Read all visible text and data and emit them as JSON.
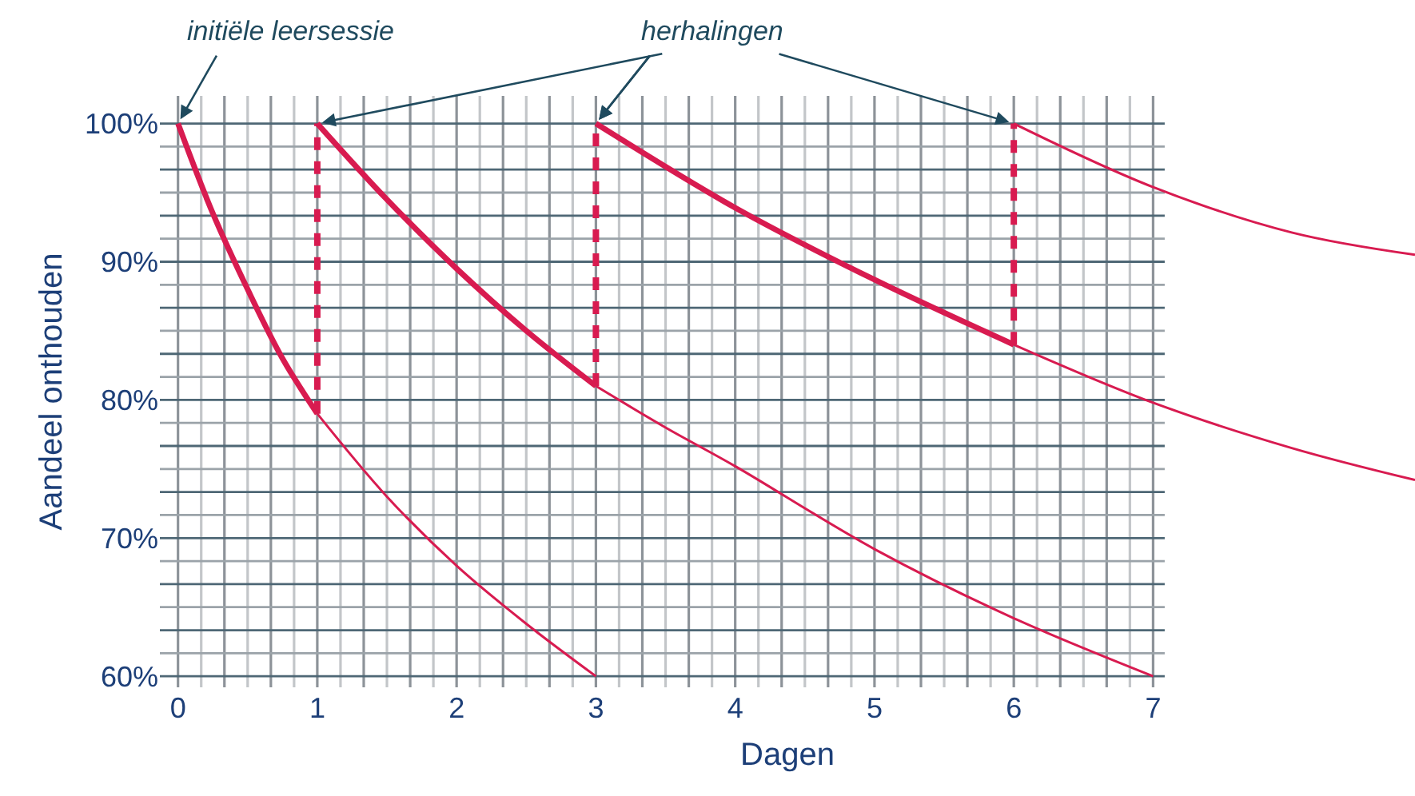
{
  "chart_data": {
    "type": "line",
    "xlabel": "Dagen",
    "ylabel": "Aandeel onthouden",
    "xlim": [
      -0.13,
      8.88
    ],
    "ylim": [
      59.2,
      102
    ],
    "xticks": [
      0,
      1,
      2,
      3,
      4,
      5,
      6,
      7
    ],
    "yticks": [
      {
        "value": 60,
        "label": "60%"
      },
      {
        "value": 70,
        "label": "70%"
      },
      {
        "value": 80,
        "label": "80%"
      },
      {
        "value": 90,
        "label": "90%"
      },
      {
        "value": 100,
        "label": "100%"
      }
    ],
    "grid": true,
    "marker": "none",
    "series": [
      {
        "color": "#d81b50",
        "line_style": "solid",
        "x": [
          0,
          0.25,
          0.5,
          0.75,
          1
        ],
        "values": [
          100,
          93.5,
          88,
          83,
          79
        ]
      },
      {
        "color": "#d81b50",
        "line_style": "solid",
        "x": [
          1,
          1.5,
          2,
          2.5,
          3
        ],
        "values": [
          79,
          73,
          68,
          63.8,
          60
        ]
      },
      {
        "color": "#d81b50",
        "line_style": "dashed",
        "x": [
          1,
          1
        ],
        "values": [
          79,
          100
        ]
      },
      {
        "color": "#d81b50",
        "line_style": "solid",
        "x": [
          1,
          1.5,
          2,
          2.5,
          3
        ],
        "values": [
          100,
          94.5,
          89.5,
          85,
          81
        ]
      },
      {
        "color": "#d81b50",
        "line_style": "solid",
        "x": [
          3,
          3.5,
          4,
          5,
          6,
          7
        ],
        "values": [
          81,
          78,
          75.2,
          69.2,
          64.2,
          60
        ]
      },
      {
        "color": "#d81b50",
        "line_style": "dashed",
        "x": [
          3,
          3
        ],
        "values": [
          81,
          100
        ]
      },
      {
        "color": "#d81b50",
        "line_style": "solid",
        "x": [
          3,
          4,
          5,
          6
        ],
        "values": [
          100,
          93.9,
          88.7,
          84
        ]
      },
      {
        "color": "#d81b50",
        "line_style": "solid",
        "x": [
          6,
          7,
          8,
          8.88
        ],
        "values": [
          84,
          79.8,
          76.5,
          74.2
        ]
      },
      {
        "color": "#d81b50",
        "line_style": "dashed",
        "x": [
          6,
          6
        ],
        "values": [
          84,
          100
        ]
      },
      {
        "color": "#d81b50",
        "line_style": "solid",
        "x": [
          6,
          7,
          8,
          8.88
        ],
        "values": [
          100,
          95.4,
          92.1,
          90.5
        ]
      }
    ],
    "annotations": [
      {
        "text": "initiële leersessie",
        "x": 0,
        "y": 100
      },
      {
        "text": "herhalingen",
        "x": 3,
        "y": 100
      }
    ]
  }
}
